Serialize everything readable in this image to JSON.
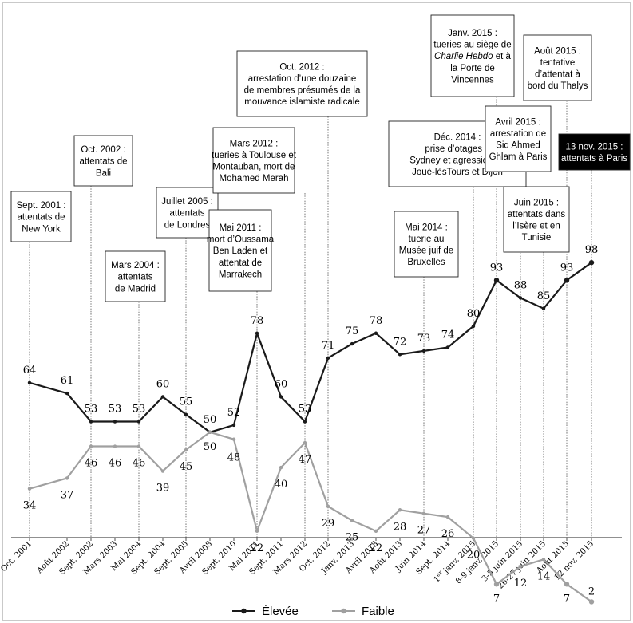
{
  "chart_data": {
    "type": "line",
    "categories": [
      "Oct. 2001",
      "Août 2002",
      "Sept. 2002",
      "Mars 2003",
      "Mai 2004",
      "Sept. 2004",
      "Sept. 2005",
      "Avril 2008",
      "Sept. 2010",
      "Mai 2011",
      "Sept. 2011",
      "Mars 2012",
      "Oct. 2012",
      "Janv. 2013",
      "Avril 2013",
      "Août 2013",
      "Juin 2014",
      "Sept. 2014",
      "1er janv. 2015",
      "8-9 janv. 2015",
      "3-5 juin 2015",
      "26-27 juin 2015",
      "Août 2015",
      "12 nov. 2015"
    ],
    "series": [
      {
        "name": "Élevée",
        "color": "#1a1a1a",
        "values": [
          64,
          61,
          53,
          53,
          53,
          60,
          55,
          50,
          52,
          78,
          60,
          53,
          71,
          75,
          78,
          72,
          73,
          74,
          80,
          93,
          88,
          85,
          93,
          98
        ]
      },
      {
        "name": "Faible",
        "color": "#a0a0a0",
        "values": [
          34,
          37,
          46,
          46,
          46,
          39,
          45,
          50,
          48,
          22,
          40,
          47,
          29,
          25,
          22,
          28,
          27,
          26,
          20,
          7,
          12,
          14,
          7,
          2
        ]
      }
    ],
    "ylim": [
      0,
      100
    ],
    "grid": false,
    "legend": "bottom",
    "title": "",
    "xlabel": "",
    "ylabel": "",
    "annotations": [
      {
        "lines": [
          "Sept. 2001 :",
          "attentats de",
          "New York"
        ],
        "index": 0,
        "highlight": false
      },
      {
        "lines": [
          "Oct. 2002 :",
          "attentats de",
          "Bali"
        ],
        "index": 2,
        "highlight": false
      },
      {
        "lines": [
          "Mars 2004 :",
          "attentats",
          "de Madrid"
        ],
        "index": 4,
        "highlight": false
      },
      {
        "lines": [
          "Juillet 2005 :",
          "attentats",
          "de Londres"
        ],
        "index": 6,
        "highlight": false
      },
      {
        "lines": [
          "Mai 2011 :",
          "mort d’Oussama",
          "Ben Laden et",
          "attentat de",
          "Marrakech"
        ],
        "index": 9,
        "highlight": false
      },
      {
        "lines": [
          "Mars 2012 :",
          "tueries à Toulouse et",
          "Montauban, mort de",
          "Mohamed Merah"
        ],
        "index": 11,
        "highlight": false
      },
      {
        "lines": [
          "Oct. 2012 :",
          "arrestation d’une douzaine",
          "de membres présumés de la",
          "mouvance islamiste radicale"
        ],
        "index": 12,
        "highlight": false
      },
      {
        "lines": [
          "Mai 2014 :",
          "tuerie au",
          "Musée juif de",
          "Bruxelles"
        ],
        "index": 16,
        "highlight": false
      },
      {
        "lines": [
          "Déc. 2014 :",
          "prise d’otages à",
          "Sydney et agressions à",
          "Joué-lèsTours et Dijon"
        ],
        "index": 18,
        "highlight": false
      },
      {
        "lines": [
          "Janv. 2015 :",
          "tueries au siège de",
          "Charlie Hebdo et à",
          "la Porte de",
          "Vincennes"
        ],
        "index": 19,
        "highlight": false
      },
      {
        "lines": [
          "Avril 2015 :",
          "arrestation de",
          "Sid Ahmed",
          "Ghlam à Paris"
        ],
        "index": 20,
        "highlight": false
      },
      {
        "lines": [
          "Juin 2015 :",
          "attentats dans",
          "l’Isère et en",
          "Tunisie"
        ],
        "index": 21,
        "highlight": false
      },
      {
        "lines": [
          "Août 2015 :",
          "tentative",
          "d’attentat à",
          "bord du Thalys"
        ],
        "index": 22,
        "highlight": false
      },
      {
        "lines": [
          "13 nov. 2015 :",
          "attentats à Paris"
        ],
        "index": 23,
        "highlight": true
      }
    ]
  }
}
